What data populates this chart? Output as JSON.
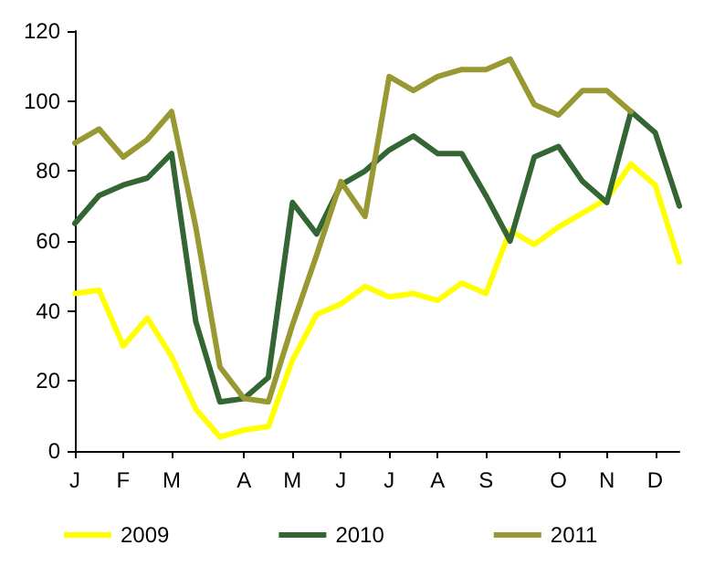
{
  "chart_data": {
    "type": "line",
    "categories": [
      "J",
      null,
      "F",
      null,
      "M",
      null,
      null,
      "A",
      null,
      "M",
      null,
      "J",
      null,
      "J",
      null,
      "A",
      null,
      "S",
      null,
      null,
      "O",
      null,
      "N",
      null,
      "D",
      null
    ],
    "series": [
      {
        "name": "2009",
        "color": "#ffff00",
        "values": [
          45,
          46,
          30,
          38,
          27,
          12,
          4,
          6,
          7,
          26,
          39,
          42,
          47,
          44,
          45,
          43,
          48,
          45,
          63,
          59,
          64,
          68,
          72,
          82,
          76,
          54
        ]
      },
      {
        "name": "2010",
        "color": "#336633",
        "values": [
          65,
          73,
          76,
          78,
          85,
          37,
          14,
          15,
          21,
          71,
          62,
          76,
          80,
          86,
          90,
          85,
          85,
          73,
          60,
          84,
          87,
          77,
          71,
          97,
          91,
          70
        ]
      },
      {
        "name": "2011",
        "color": "#999933",
        "values": [
          88,
          92,
          84,
          89,
          97,
          64,
          24,
          15,
          14,
          36,
          56,
          77,
          67,
          107,
          103,
          107,
          109,
          109,
          112,
          99,
          96,
          103,
          103,
          97,
          null,
          null
        ]
      }
    ],
    "ylim": [
      0,
      120
    ],
    "yticks": [
      0,
      20,
      40,
      60,
      80,
      100,
      120
    ],
    "grid": false,
    "legend": "bottom",
    "marker": "none",
    "line_style": "solid"
  }
}
